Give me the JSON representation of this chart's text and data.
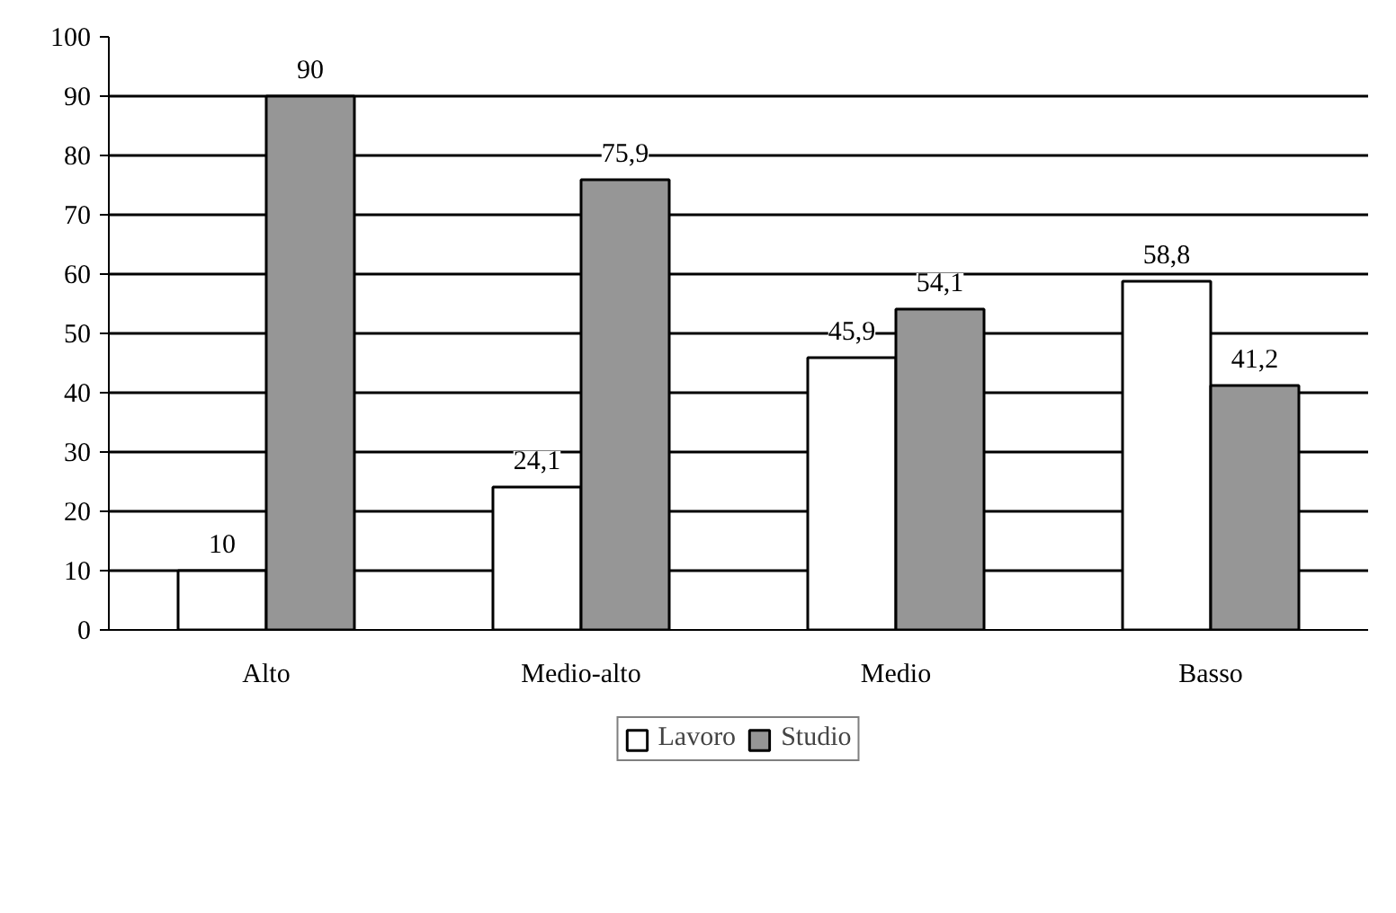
{
  "chart_data": {
    "type": "bar",
    "categories": [
      "Alto",
      "Medio-alto",
      "Medio",
      "Basso"
    ],
    "series": [
      {
        "name": "Lavoro",
        "color": "#ffffff",
        "values": [
          10,
          24.1,
          45.9,
          58.8
        ],
        "value_labels": [
          "10",
          "24,1",
          "45,9",
          "58,8"
        ]
      },
      {
        "name": "Studio",
        "color": "#969696",
        "values": [
          90,
          75.9,
          54.1,
          41.2
        ],
        "value_labels": [
          "90",
          "75,9",
          "54,1",
          "41,2"
        ]
      }
    ],
    "ylim": [
      0,
      100
    ],
    "yticks": [
      0,
      10,
      20,
      30,
      40,
      50,
      60,
      70,
      80,
      90,
      100
    ],
    "grid": "y",
    "legend": "bottom"
  }
}
